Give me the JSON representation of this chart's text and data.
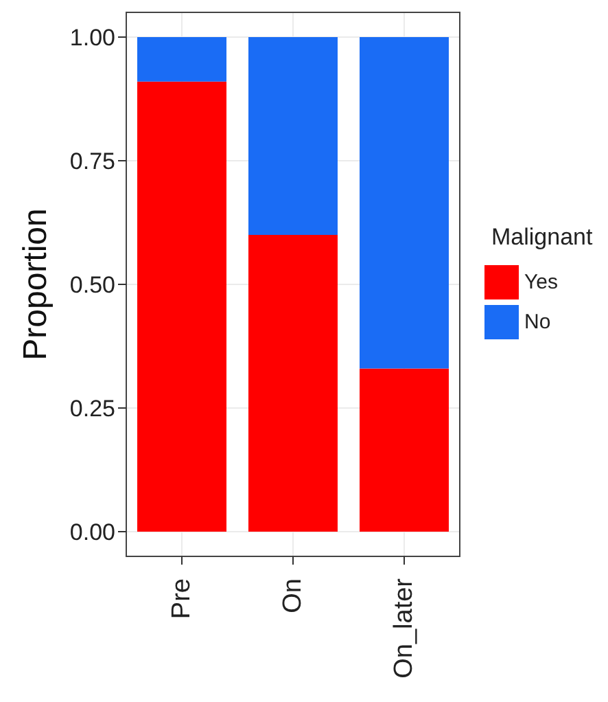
{
  "chart_data": {
    "type": "bar",
    "stacked": true,
    "ylabel": "Proportion",
    "legend_title": "Malignant",
    "categories": [
      "Pre",
      "On",
      "On_later"
    ],
    "series": [
      {
        "name": "Yes",
        "color": "#ff0000",
        "values": [
          0.91,
          0.6,
          0.33
        ]
      },
      {
        "name": "No",
        "color": "#1a6cf5",
        "values": [
          0.09,
          0.4,
          0.67
        ]
      }
    ],
    "ylim": [
      -0.05,
      1.05
    ],
    "yticks": [
      {
        "value": 0,
        "label": "0.00"
      },
      {
        "value": 0.25,
        "label": "0.25"
      },
      {
        "value": 0.5,
        "label": "0.50"
      },
      {
        "value": 0.75,
        "label": "0.75"
      },
      {
        "value": 1,
        "label": "1.00"
      }
    ],
    "grid": true,
    "legend": "right"
  }
}
